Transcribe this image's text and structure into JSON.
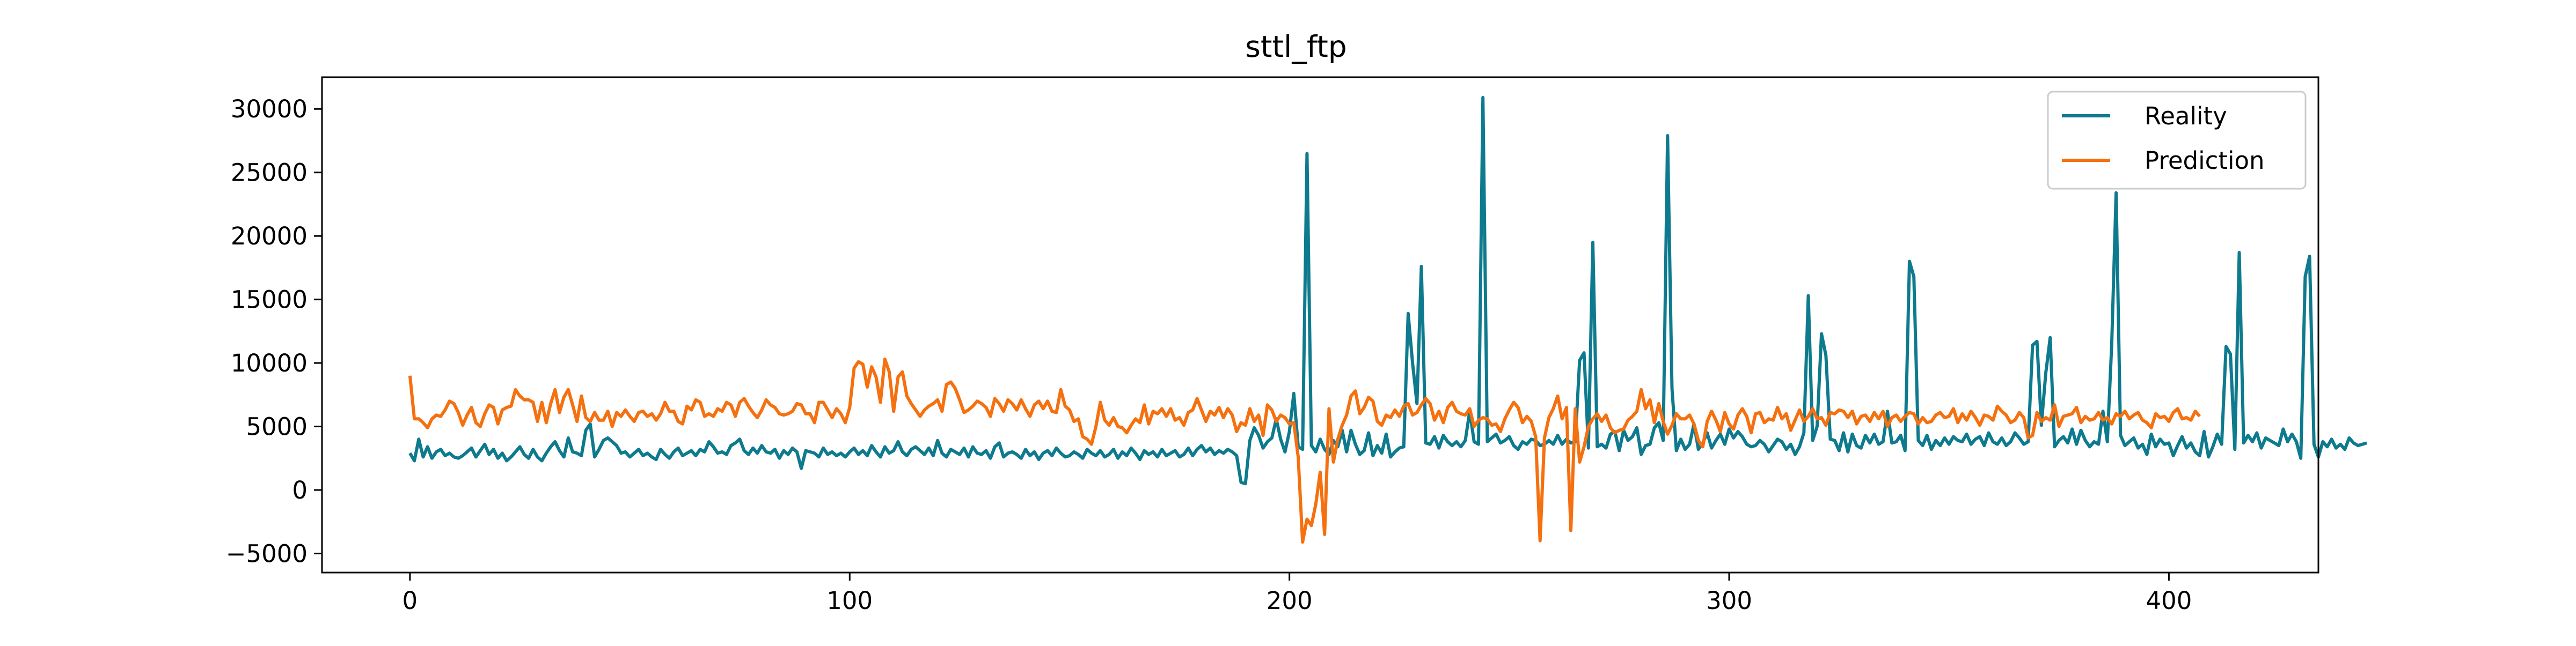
{
  "chart_data": {
    "type": "line",
    "title": "sttl_ftp",
    "xlabel": "",
    "ylabel": "",
    "xlim": [
      -20,
      434
    ],
    "ylim": [
      -6500,
      32500
    ],
    "x_ticks": [
      0,
      100,
      200,
      300,
      400
    ],
    "y_ticks": [
      -5000,
      0,
      5000,
      10000,
      15000,
      20000,
      25000,
      30000
    ],
    "grid": false,
    "legend": "top-right",
    "series": [
      {
        "name": "Reality",
        "color": "#0e7a8e",
        "x_start": 0,
        "values": [
          2900,
          2300,
          4000,
          2600,
          3400,
          2500,
          3000,
          3200,
          2700,
          2900,
          2600,
          2500,
          2700,
          3000,
          3300,
          2600,
          3100,
          3600,
          2800,
          3200,
          2500,
          2900,
          2300,
          2600,
          3000,
          3400,
          2800,
          2500,
          3200,
          2600,
          2300,
          2900,
          3400,
          3800,
          3100,
          2600,
          4100,
          3000,
          2900,
          2700,
          4700,
          5200,
          2600,
          3200,
          3900,
          4100,
          3800,
          3500,
          2900,
          3000,
          2600,
          2900,
          3200,
          2700,
          2900,
          2600,
          2400,
          3200,
          2800,
          2500,
          3000,
          3300,
          2700,
          2900,
          3100,
          2700,
          3200,
          3000,
          3800,
          3400,
          2900,
          3000,
          2800,
          3500,
          3700,
          4000,
          3100,
          2800,
          3300,
          2900,
          3500,
          3000,
          2900,
          3200,
          2500,
          3100,
          2800,
          3300,
          3000,
          1700,
          3100,
          3000,
          2900,
          2600,
          3300,
          2800,
          3000,
          2700,
          2900,
          2600,
          3000,
          3300,
          2800,
          3100,
          2700,
          3500,
          3000,
          2600,
          3400,
          2900,
          3100,
          3800,
          3000,
          2700,
          3200,
          3400,
          3100,
          2800,
          3300,
          2700,
          3900,
          2900,
          2600,
          3200,
          3000,
          2800,
          3300,
          2600,
          3400,
          2900,
          2800,
          3100,
          2500,
          3400,
          3700,
          2600,
          2900,
          3000,
          2800,
          2500,
          3200,
          2700,
          3000,
          2400,
          2900,
          3100,
          2700,
          3300,
          2900,
          2600,
          2700,
          3000,
          2800,
          2500,
          3200,
          2900,
          2700,
          3100,
          2600,
          2800,
          3200,
          2500,
          3000,
          2700,
          3300,
          2900,
          2400,
          3100,
          2800,
          3000,
          2600,
          3200,
          2700,
          2900,
          3100,
          2600,
          2800,
          3300,
          2700,
          3200,
          3500,
          3000,
          3300,
          2800,
          3100,
          2900,
          3200,
          3000,
          2700,
          600,
          500,
          3900,
          4900,
          4300,
          3300,
          3800,
          4100,
          5600,
          4000,
          3000,
          4600,
          7600,
          3400,
          3200,
          26500,
          3500,
          3000,
          4000,
          3200,
          2800,
          3900,
          3400,
          4700,
          3000,
          4700,
          3600,
          2800,
          3100,
          4500,
          2700,
          3500,
          2900,
          4400,
          2600,
          3000,
          3300,
          3400,
          13900,
          10000,
          6800,
          17600,
          3700,
          3600,
          4200,
          3300,
          4300,
          3800,
          3500,
          3800,
          3400,
          3900,
          6200,
          3800,
          3600,
          30900,
          3800,
          4100,
          4400,
          3700,
          3900,
          4200,
          3500,
          3200,
          3800,
          3600,
          4000,
          3900,
          3500,
          3600,
          3900,
          3600,
          4300,
          3600,
          4000,
          3700,
          3800,
          10200,
          10800,
          3300,
          19500,
          3400,
          3600,
          3300,
          4400,
          4600,
          3100,
          4700,
          3900,
          4200,
          4900,
          2800,
          3500,
          3600,
          4900,
          5300,
          3900,
          27900,
          8000,
          3100,
          4000,
          3200,
          3600,
          5200,
          3200,
          3700,
          4500,
          3300,
          3900,
          4400,
          3600,
          4800,
          4100,
          4600,
          4200,
          3600,
          3400,
          3500,
          3900,
          3600,
          3000,
          3500,
          4000,
          3800,
          3200,
          3600,
          2800,
          3400,
          4500,
          15300,
          3900,
          5000,
          12300,
          10600,
          4000,
          3900,
          3100,
          4500,
          3000,
          4400,
          3500,
          3300,
          4300,
          3700,
          4400,
          3600,
          3800,
          6200,
          3700,
          3800,
          4300,
          3100,
          18000,
          16800,
          3900,
          3500,
          4300,
          3200,
          3900,
          3500,
          4100,
          3600,
          4200,
          3900,
          3800,
          4400,
          3600,
          4000,
          4200,
          3500,
          4500,
          3800,
          3600,
          4100,
          3500,
          3800,
          4500,
          4100,
          3600,
          3800,
          11400,
          11700,
          5100,
          9200,
          12000,
          3400,
          3900,
          4200,
          3700,
          4800,
          3600,
          4700,
          3900,
          3400,
          3800,
          3600,
          6200,
          3800,
          11500,
          23400,
          4300,
          3500,
          3800,
          4100,
          3300,
          3600,
          2800,
          4400,
          3400,
          4000,
          3600,
          3700,
          2700,
          3500,
          4200,
          3300,
          3700,
          3000,
          2700,
          4600,
          2600,
          3400,
          4400,
          3600,
          11300,
          10700,
          3200,
          18700,
          3700,
          4300,
          3800,
          4500,
          3300,
          4100,
          3900,
          3700,
          3500,
          4800,
          3800,
          4400,
          3800,
          2500,
          16800,
          18400,
          3600,
          2600,
          3800,
          3400,
          4000,
          3300,
          3600,
          3200,
          4100,
          3700,
          3500,
          3600,
          3700
        ]
      },
      {
        "name": "Prediction",
        "color": "#f5700f",
        "x_start": 0,
        "values": [
          9000,
          5600,
          5600,
          5300,
          4900,
          5600,
          5900,
          5800,
          6300,
          7000,
          6800,
          6100,
          5100,
          5900,
          6500,
          5300,
          5000,
          6000,
          6700,
          6500,
          5200,
          6300,
          6500,
          6600,
          7900,
          7400,
          7100,
          7100,
          6900,
          5400,
          6900,
          5300,
          6800,
          7900,
          6100,
          7300,
          7900,
          6700,
          5400,
          7400,
          5700,
          5400,
          6100,
          5500,
          5500,
          6200,
          5000,
          6100,
          5800,
          6300,
          5800,
          5400,
          6100,
          6200,
          5800,
          6000,
          5500,
          6000,
          6900,
          6200,
          6200,
          5400,
          5200,
          6600,
          6300,
          7100,
          6900,
          5800,
          6000,
          5800,
          6400,
          6200,
          6900,
          6700,
          5800,
          6900,
          7200,
          6600,
          6100,
          5700,
          6300,
          7100,
          6700,
          6500,
          6000,
          5900,
          6000,
          6200,
          6800,
          6700,
          6000,
          6000,
          5300,
          6900,
          6900,
          6300,
          5700,
          6400,
          6000,
          5300,
          6500,
          9600,
          10100,
          9900,
          8100,
          9700,
          8900,
          6900,
          10300,
          9300,
          6200,
          8900,
          9300,
          7400,
          6800,
          6300,
          5800,
          6300,
          6600,
          6800,
          7100,
          6200,
          8300,
          8500,
          8000,
          7100,
          6100,
          6300,
          6600,
          7000,
          6800,
          6500,
          5800,
          7200,
          6800,
          6200,
          7100,
          6800,
          6300,
          7100,
          6400,
          5800,
          6700,
          7000,
          6400,
          7000,
          6200,
          6100,
          7900,
          6600,
          6300,
          5400,
          5600,
          4200,
          4000,
          3600,
          5000,
          6900,
          5500,
          5100,
          5700,
          5000,
          4900,
          4500,
          5100,
          5600,
          5300,
          6700,
          5200,
          6200,
          6000,
          6400,
          5800,
          6400,
          5500,
          5700,
          5100,
          6100,
          6300,
          7200,
          6300,
          5400,
          6200,
          5900,
          6500,
          5700,
          6400,
          5900,
          4600,
          5300,
          5100,
          6400,
          5400,
          5900,
          4300,
          6700,
          6300,
          5400,
          5900,
          5700,
          5200,
          5300,
          2600,
          -4100,
          -2300,
          -2800,
          -1100,
          1400,
          -3500,
          6400,
          2200,
          4000,
          5100,
          5900,
          7400,
          7800,
          6000,
          6500,
          7300,
          7000,
          5400,
          5100,
          5900,
          5700,
          6300,
          5800,
          6600,
          6800,
          5900,
          6100,
          6700,
          7200,
          6800,
          5500,
          6200,
          5300,
          6500,
          6900,
          6200,
          6000,
          5900,
          6400,
          5000,
          5500,
          5700,
          5600,
          5100,
          5200,
          4600,
          5600,
          6300,
          6900,
          6500,
          5300,
          5800,
          5400,
          4200,
          -4000,
          4100,
          5700,
          6400,
          7400,
          5600,
          6500,
          -3200,
          6400,
          2200,
          3400,
          5000,
          5600,
          6000,
          5400,
          5900,
          4900,
          4500,
          4700,
          4800,
          5500,
          5800,
          6200,
          7900,
          6400,
          7100,
          5300,
          6800,
          5400,
          4400,
          5100,
          6000,
          5600,
          5600,
          5900,
          5200,
          3900,
          3400,
          5400,
          6200,
          5500,
          4600,
          6100,
          5200,
          4800,
          5900,
          6400,
          5800,
          4500,
          6000,
          6100,
          5300,
          5600,
          5500,
          6500,
          5600,
          6000,
          4700,
          5500,
          6300,
          5400,
          5800,
          6400,
          5600,
          5700,
          5100,
          6100,
          6000,
          6300,
          6200,
          5700,
          6200,
          5200,
          5800,
          5900,
          5400,
          6100,
          5600,
          6200,
          5000,
          5700,
          5900,
          5400,
          5800,
          6100,
          6000,
          5200,
          5700,
          5300,
          5400,
          5900,
          6100,
          5700,
          5800,
          6400,
          5300,
          6000,
          5500,
          6200,
          5700,
          5100,
          5900,
          5800,
          5500,
          6600,
          6200,
          5900,
          5300,
          5500,
          6100,
          5700,
          4100,
          4300,
          6100,
          5400,
          5700,
          5500,
          6700,
          5000,
          5800,
          5900,
          6000,
          6500,
          5300,
          5800,
          5500,
          5600,
          6100,
          5500,
          5700,
          5200,
          6000,
          5800,
          6200,
          5600,
          5900,
          6100,
          5500,
          5300,
          4900,
          6000,
          5700,
          5800,
          5400,
          6100,
          6400,
          5600,
          5700,
          5500,
          6200,
          5800
        ]
      }
    ]
  }
}
